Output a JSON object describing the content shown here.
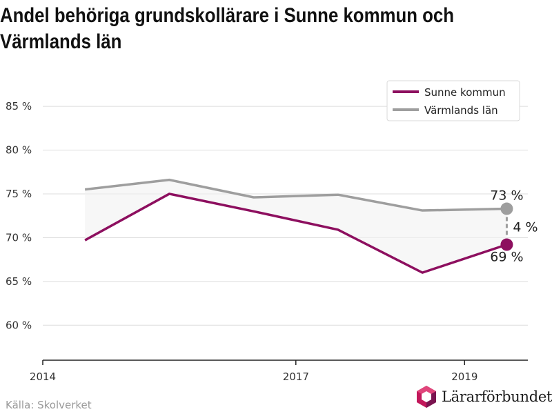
{
  "title": "Andel behöriga grundskollärare i Sunne kommun och Värmlands län",
  "source": "Källa: Skolverket",
  "brand": "Lärarförbundet",
  "colors": {
    "sunne": "#8d0f5f",
    "varmland": "#9e9e9e",
    "band": "#f2f2f2"
  },
  "chart_data": {
    "type": "line",
    "x": [
      2014.5,
      2015.5,
      2016.5,
      2017.5,
      2018.5,
      2019.5
    ],
    "series": [
      {
        "name": "Sunne kommun",
        "values": [
          69.7,
          75.0,
          73.0,
          70.9,
          66.0,
          69.2
        ]
      },
      {
        "name": "Värmlands län",
        "values": [
          75.5,
          76.6,
          74.6,
          74.9,
          73.1,
          73.3
        ]
      }
    ],
    "xlim": [
      2014,
      2019.75
    ],
    "ylim": [
      56,
      88
    ],
    "x_ticks": [
      "2014",
      "2017",
      "2019"
    ],
    "y_ticks": [
      "60 %",
      "65 %",
      "70 %",
      "75 %",
      "80 %",
      "85 %"
    ],
    "grid": true,
    "legend_position": "top-right",
    "end_labels": {
      "varmland": "73 %",
      "sunne": "69 %",
      "difference": "4 %"
    }
  }
}
